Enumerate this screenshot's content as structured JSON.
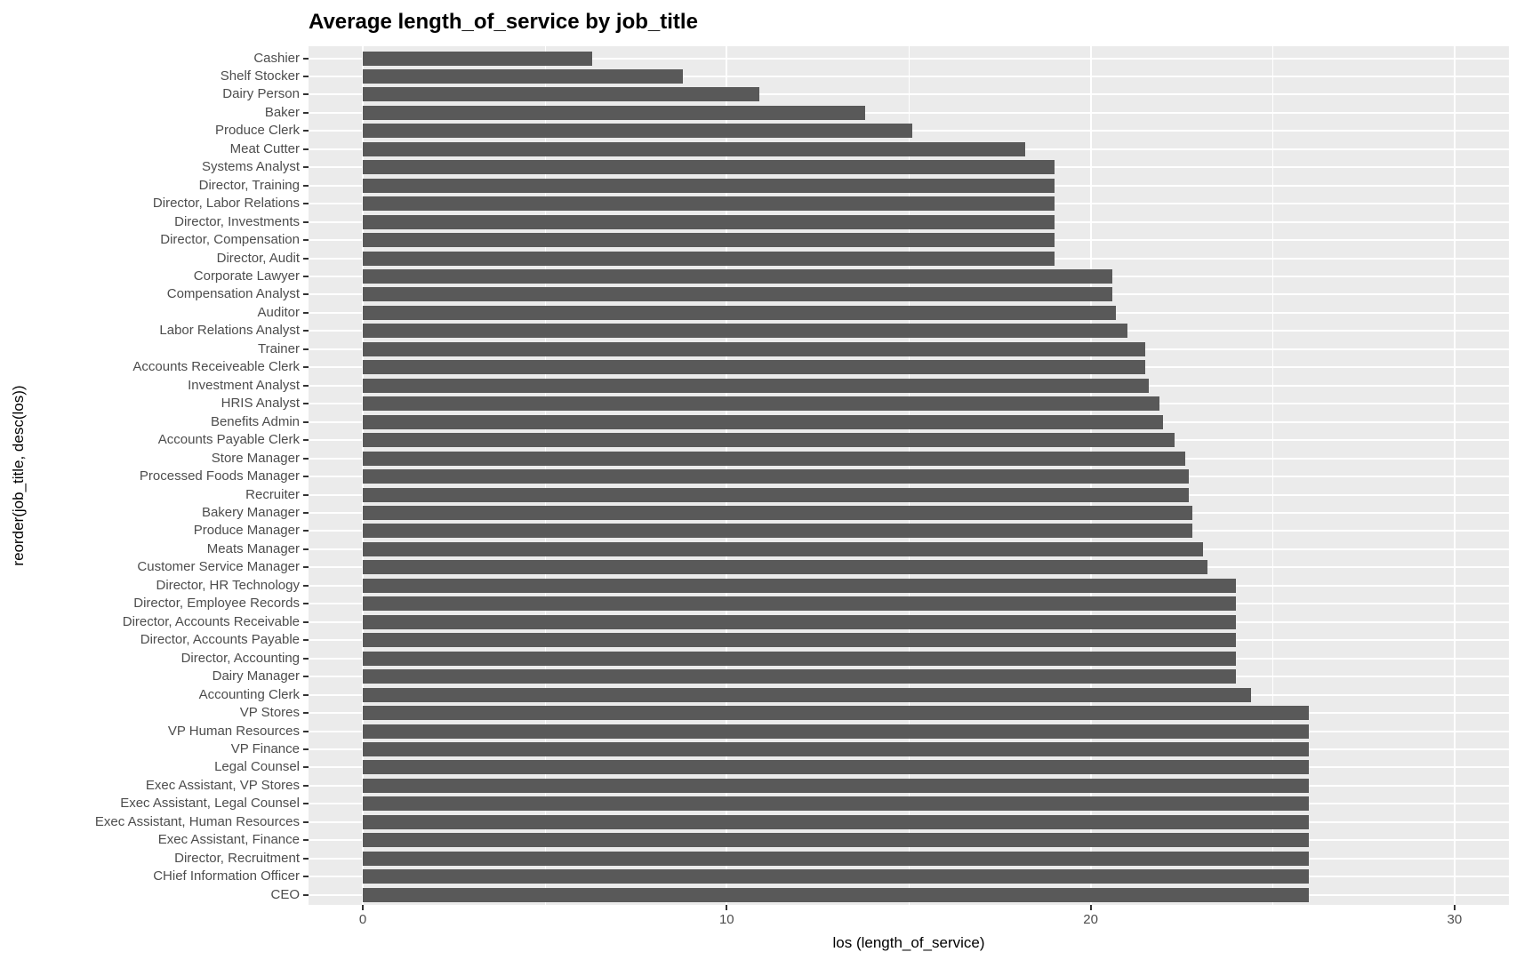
{
  "chart_data": {
    "type": "bar",
    "orientation": "horizontal",
    "title": "Average length_of_service by job_title",
    "xlabel": "los (length_of_service)",
    "ylabel": "reorder(job_title, desc(los))",
    "xlim": [
      0,
      30
    ],
    "x_ticks": [
      0,
      10,
      20,
      30
    ],
    "x_minor_gridlines": [
      5,
      15,
      25
    ],
    "grid": "on",
    "legend": "none",
    "panel_bg_color": "#EBEBEB",
    "bar_color": "#595959",
    "gridline_color": "#FFFFFF",
    "tick_label_color": "#4D4D4D",
    "categories": [
      "Cashier",
      "Shelf Stocker",
      "Dairy Person",
      "Baker",
      "Produce Clerk",
      "Meat Cutter",
      "Systems Analyst",
      "Director, Training",
      "Director, Labor Relations",
      "Director, Investments",
      "Director, Compensation",
      "Director, Audit",
      "Corporate Lawyer",
      "Compensation Analyst",
      "Auditor",
      "Labor Relations Analyst",
      "Trainer",
      "Accounts Receiveable Clerk",
      "Investment Analyst",
      "HRIS Analyst",
      "Benefits Admin",
      "Accounts Payable Clerk",
      "Store Manager",
      "Processed Foods Manager",
      "Recruiter",
      "Bakery Manager",
      "Produce Manager",
      "Meats Manager",
      "Customer Service Manager",
      "Director, HR Technology",
      "Director, Employee Records",
      "Director, Accounts Receivable",
      "Director, Accounts Payable",
      "Director, Accounting",
      "Dairy Manager",
      "Accounting Clerk",
      "VP Stores",
      "VP Human Resources",
      "VP Finance",
      "Legal Counsel",
      "Exec Assistant, VP Stores",
      "Exec Assistant, Legal Counsel",
      "Exec Assistant, Human Resources",
      "Exec Assistant, Finance",
      "Director, Recruitment",
      "CHief Information Officer",
      "CEO"
    ],
    "values": [
      6.3,
      8.8,
      10.9,
      13.8,
      15.1,
      18.2,
      19.0,
      19.0,
      19.0,
      19.0,
      19.0,
      19.0,
      20.6,
      20.6,
      20.7,
      21.0,
      21.5,
      21.5,
      21.6,
      21.9,
      22.0,
      22.3,
      22.6,
      22.7,
      22.7,
      22.8,
      22.8,
      23.1,
      23.2,
      24.0,
      24.0,
      24.0,
      24.0,
      24.0,
      24.0,
      24.4,
      26.0,
      26.0,
      26.0,
      26.0,
      26.0,
      26.0,
      26.0,
      26.0,
      26.0,
      26.0,
      26.0
    ]
  }
}
